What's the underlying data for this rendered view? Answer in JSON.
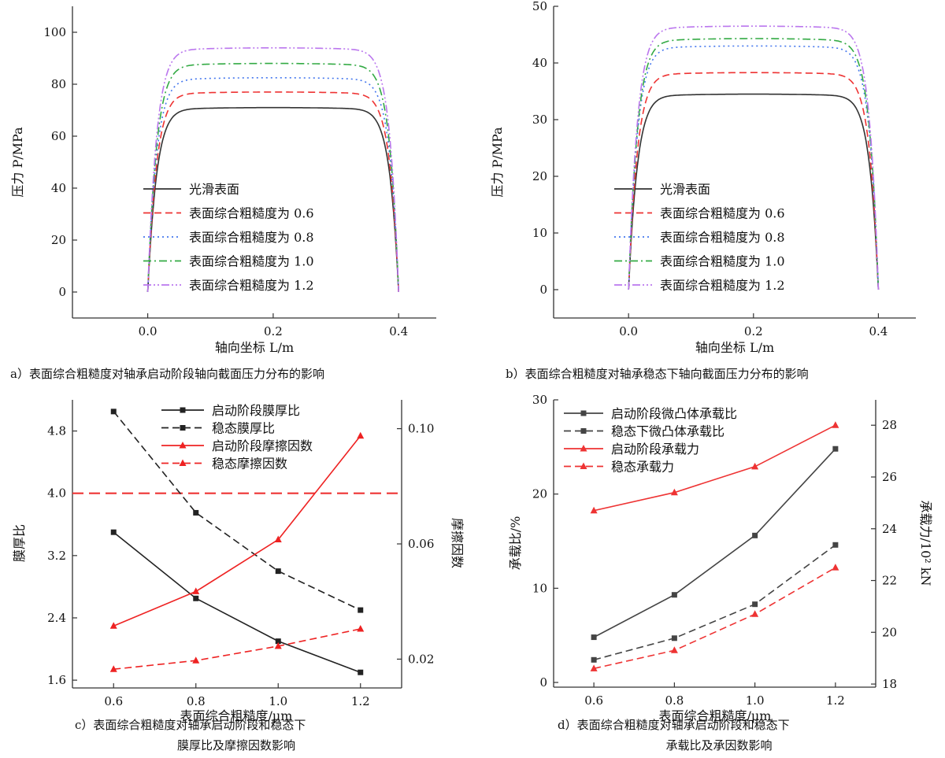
{
  "figure": {
    "captions": [
      {
        "id": "a",
        "lines": [
          "a）表面综合粗糙度对轴承启动阶段轴向截面压力分布的影响"
        ]
      },
      {
        "id": "b",
        "lines": [
          "b）表面综合粗糙度对轴承稳态下轴向截面压力分布的影响"
        ]
      },
      {
        "id": "c",
        "lines": [
          "c）表面综合粗糙度对轴承启动阶段和稳态下",
          "膜厚比及摩擦因数影响"
        ]
      },
      {
        "id": "d",
        "lines": [
          "d）表面综合粗糙度对轴承启动阶段和稳态下",
          "承载比及承因数影响"
        ]
      }
    ]
  },
  "chart_data": [
    {
      "id": "a",
      "type": "line",
      "xlabel": "轴向坐标 L/m",
      "ylabel": "压力 P/MPa",
      "xlim": [
        -0.12,
        0.46
      ],
      "ylim": [
        -10,
        110
      ],
      "xticks": [
        0.0,
        0.2,
        0.4
      ],
      "yticks": [
        0,
        20,
        40,
        60,
        80,
        100
      ],
      "profile_x_range": [
        0.0,
        0.4
      ],
      "legend_position": "center",
      "series": [
        {
          "name": "光滑表面",
          "plateau": 71,
          "color": "#333333",
          "dash": "solid"
        },
        {
          "name": "表面综合粗糙度为 0.6",
          "plateau": 77,
          "color": "#ee3333",
          "dash": "dashed"
        },
        {
          "name": "表面综合粗糙度为 0.8",
          "plateau": 82.5,
          "color": "#4477ee",
          "dash": "dotted"
        },
        {
          "name": "表面综合粗糙度为 1.0",
          "plateau": 88,
          "color": "#33aa44",
          "dash": "dashdot"
        },
        {
          "name": "表面综合粗糙度为 1.2",
          "plateau": 94,
          "color": "#bb77ee",
          "dash": "dashdotdot"
        }
      ]
    },
    {
      "id": "b",
      "type": "line",
      "xlabel": "轴向坐标 L/m",
      "ylabel": "压力 P/MPa",
      "xlim": [
        -0.12,
        0.46
      ],
      "ylim": [
        -5,
        50
      ],
      "xticks": [
        0.0,
        0.2,
        0.4
      ],
      "yticks": [
        0,
        10,
        20,
        30,
        40,
        50
      ],
      "profile_x_range": [
        0.0,
        0.4
      ],
      "legend_position": "center",
      "series": [
        {
          "name": "光滑表面",
          "plateau": 34.5,
          "color": "#333333",
          "dash": "solid"
        },
        {
          "name": "表面综合粗糙度为 0.6",
          "plateau": 38.3,
          "color": "#ee3333",
          "dash": "dashed"
        },
        {
          "name": "表面综合粗糙度为 0.8",
          "plateau": 43,
          "color": "#4477ee",
          "dash": "dotted"
        },
        {
          "name": "表面综合粗糙度为 1.0",
          "plateau": 44.3,
          "color": "#33aa44",
          "dash": "dashdot"
        },
        {
          "name": "表面综合粗糙度为 1.2",
          "plateau": 46.5,
          "color": "#bb77ee",
          "dash": "dashdotdot"
        }
      ]
    },
    {
      "id": "c",
      "type": "line",
      "xlabel": "表面综合粗糙度/μm",
      "ylabel": "膜厚比",
      "ylabel_right": "摩擦因数",
      "xlim": [
        0.5,
        1.3
      ],
      "ylim": [
        1.5,
        5.2
      ],
      "ylim_right": [
        0.01,
        0.11
      ],
      "xticks": [
        0.6,
        0.8,
        1.0,
        1.2
      ],
      "yticks": [
        1.6,
        2.4,
        3.2,
        4.0,
        4.8
      ],
      "yticks_right": [
        0.02,
        0.06,
        0.1
      ],
      "ytick_labels": [
        "1.6",
        "2.4",
        "3.2",
        "4.0",
        "4.8"
      ],
      "ytick_labels_right": [
        "0.02",
        "0.06",
        "0.10"
      ],
      "reference_line": {
        "y": 4.0,
        "axis": "left",
        "color": "#ee3333",
        "dash": "dashed"
      },
      "legend_position": "top-center",
      "x": [
        0.6,
        0.8,
        1.0,
        1.2
      ],
      "series": [
        {
          "name": "启动阶段膜厚比",
          "axis": "left",
          "values": [
            3.5,
            2.65,
            2.1,
            1.7
          ],
          "color": "#222222",
          "dash": "solid",
          "marker": "square"
        },
        {
          "name": "稳态膜厚比",
          "axis": "left",
          "values": [
            5.05,
            3.75,
            3.0,
            2.5
          ],
          "color": "#222222",
          "dash": "dashed",
          "marker": "square"
        },
        {
          "name": "启动阶段摩擦因数",
          "axis": "right",
          "values": [
            0.0315,
            0.0435,
            0.0615,
            0.0975
          ],
          "color": "#ee2222",
          "dash": "solid",
          "marker": "triangle"
        },
        {
          "name": "稳态摩擦因数",
          "axis": "right",
          "values": [
            0.0165,
            0.0195,
            0.0245,
            0.0305
          ],
          "color": "#ee2222",
          "dash": "dashed",
          "marker": "triangle"
        }
      ]
    },
    {
      "id": "d",
      "type": "line",
      "xlabel": "表面综合粗糙度/μm",
      "ylabel": "承载比/%",
      "ylabel_right": "承载力/10² kN",
      "xlim": [
        0.5,
        1.3
      ],
      "ylim": [
        -0.5,
        30
      ],
      "ylim_right": [
        17.88,
        28.98
      ],
      "xticks": [
        0.6,
        0.8,
        1.0,
        1.2
      ],
      "yticks": [
        0,
        10,
        20,
        30
      ],
      "yticks_right": [
        18,
        20,
        22,
        24,
        26,
        28
      ],
      "legend_position": "top-left",
      "x": [
        0.6,
        0.8,
        1.0,
        1.2
      ],
      "series": [
        {
          "name": "启动阶段微凸体承载比",
          "axis": "left",
          "values": [
            4.8,
            9.3,
            15.6,
            24.8
          ],
          "color": "#444444",
          "dash": "solid",
          "marker": "square"
        },
        {
          "name": "稳态下微凸体承载比",
          "axis": "left",
          "values": [
            2.4,
            4.7,
            8.3,
            14.6
          ],
          "color": "#444444",
          "dash": "dashed",
          "marker": "square"
        },
        {
          "name": "启动阶段承载力",
          "axis": "right",
          "values": [
            24.7,
            25.4,
            26.4,
            28.0
          ],
          "color": "#ee3333",
          "dash": "solid",
          "marker": "triangle"
        },
        {
          "name": "稳态承载力",
          "axis": "right",
          "values": [
            18.6,
            19.3,
            20.7,
            22.5
          ],
          "color": "#ee3333",
          "dash": "dashed",
          "marker": "triangle"
        }
      ]
    }
  ]
}
